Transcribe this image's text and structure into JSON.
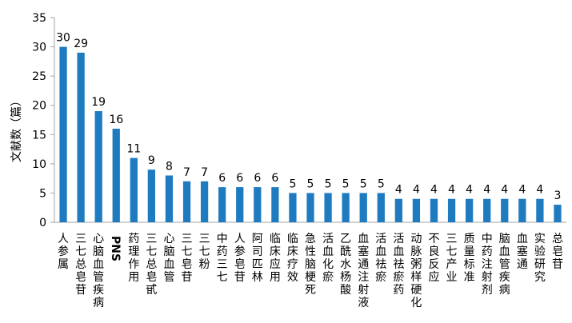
{
  "chart_data": {
    "type": "bar",
    "title": "",
    "xlabel": "",
    "ylabel": "文献数（篇）",
    "ylim": [
      0,
      35
    ],
    "yticks": [
      0,
      5,
      10,
      15,
      20,
      25,
      30,
      35
    ],
    "grid": false,
    "legend": "none",
    "bar_color": "#1f7bbf",
    "categories": [
      "人参属",
      "三七总皂苷",
      "心脑血管疾病",
      "PNS",
      "药理作用",
      "三七总皂甙",
      "心脑血管",
      "三七皂苷",
      "三七粉",
      "中药三七",
      "人参皂苷",
      "阿司匹林",
      "临床应用",
      "临床疗效",
      "急性脑梗死",
      "活血化瘀",
      "乙酰水杨酸",
      "血塞通注射液",
      "活血祛瘀",
      "活血祛瘀药",
      "动脉粥样硬化",
      "不良反应",
      "三七产业",
      "质量标准",
      "中药注射剂",
      "脑血管疾病",
      "血塞通",
      "实验研究",
      "总皂苷"
    ],
    "values": [
      30,
      29,
      19,
      16,
      11,
      9,
      8,
      7,
      7,
      6,
      6,
      6,
      6,
      5,
      5,
      5,
      5,
      5,
      5,
      4,
      4,
      4,
      4,
      4,
      4,
      4,
      4,
      4,
      3
    ]
  }
}
